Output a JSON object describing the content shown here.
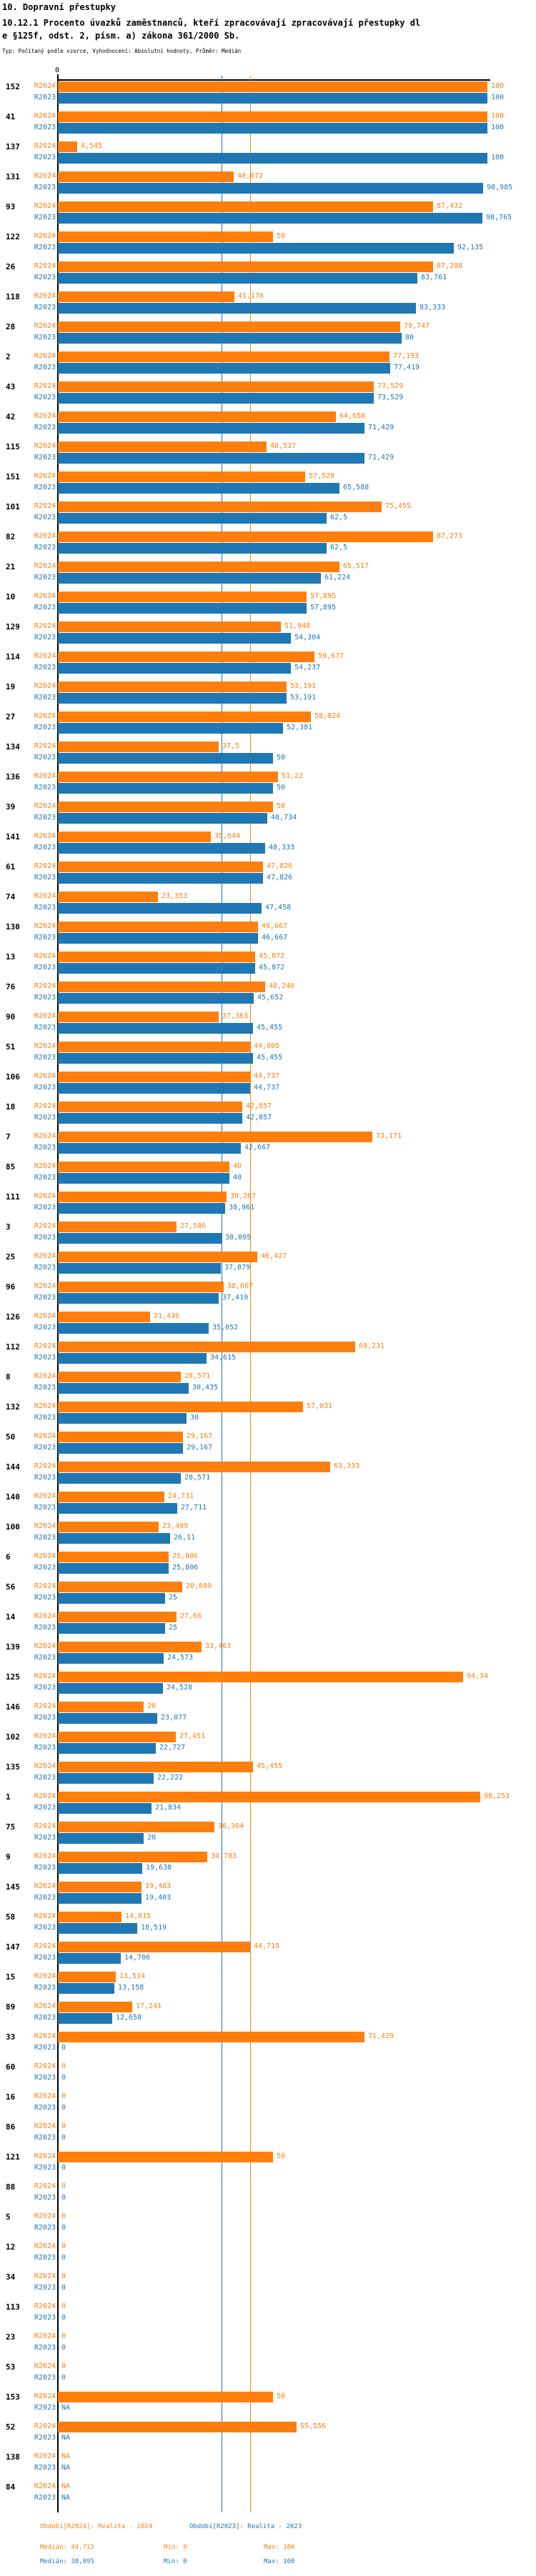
{
  "header": {
    "title": "10. Dopravní přestupky",
    "subtitle_line1": "10.12.1 Procento úvazků zaměstnanců, kteří zpracovávají zpracovávají přestupky dl",
    "subtitle_line2": "e §125f, odst. 2, písm. a) zákona 361/2000 Sb.",
    "meta": "Typ: Počítaný podle vzorce, Vyhodnocení: Absolutní hodnoty, Průměr: Medián"
  },
  "axis": {
    "zero_label": "0"
  },
  "colors": {
    "r2024": "#ff7f0e",
    "r2023": "#1f77b4",
    "axis": "#000000"
  },
  "series_labels": {
    "r2024": "R2024",
    "r2023": "R2023"
  },
  "chart_data": {
    "type": "bar",
    "orientation": "horizontal",
    "xlim": [
      0,
      100
    ],
    "grid": false,
    "series_names": [
      "R2024",
      "R2023"
    ],
    "median_lines": {
      "R2024": 44.715,
      "R2023": 38.095
    },
    "stats": {
      "R2024": {
        "median": 44.715,
        "min": 0,
        "max": 100
      },
      "R2023": {
        "median": 38.095,
        "min": 0,
        "max": 100
      }
    },
    "rows": [
      {
        "id": "152",
        "r2024": "100",
        "r2023": "100"
      },
      {
        "id": "41",
        "r2024": "100",
        "r2023": "100"
      },
      {
        "id": "137",
        "r2024": "4,545",
        "r2023": "100"
      },
      {
        "id": "131",
        "r2024": "40,872",
        "r2023": "98,985"
      },
      {
        "id": "93",
        "r2024": "87,432",
        "r2023": "98,765"
      },
      {
        "id": "122",
        "r2024": "50",
        "r2023": "92,135"
      },
      {
        "id": "26",
        "r2024": "87,288",
        "r2023": "83,761"
      },
      {
        "id": "118",
        "r2024": "41,176",
        "r2023": "83,333"
      },
      {
        "id": "28",
        "r2024": "79,747",
        "r2023": "80"
      },
      {
        "id": "2",
        "r2024": "77,193",
        "r2023": "77,419"
      },
      {
        "id": "43",
        "r2024": "73,529",
        "r2023": "73,529"
      },
      {
        "id": "42",
        "r2024": "64,658",
        "r2023": "71,429"
      },
      {
        "id": "115",
        "r2024": "48,537",
        "r2023": "71,429"
      },
      {
        "id": "151",
        "r2024": "57,528",
        "r2023": "65,588"
      },
      {
        "id": "101",
        "r2024": "75,455",
        "r2023": "62,5"
      },
      {
        "id": "82",
        "r2024": "87,273",
        "r2023": "62,5"
      },
      {
        "id": "21",
        "r2024": "65,517",
        "r2023": "61,224"
      },
      {
        "id": "10",
        "r2024": "57,895",
        "r2023": "57,895"
      },
      {
        "id": "129",
        "r2024": "51,948",
        "r2023": "54,304"
      },
      {
        "id": "114",
        "r2024": "59,677",
        "r2023": "54,237"
      },
      {
        "id": "19",
        "r2024": "53,191",
        "r2023": "53,191"
      },
      {
        "id": "27",
        "r2024": "58,824",
        "r2023": "52,381"
      },
      {
        "id": "134",
        "r2024": "37,5",
        "r2023": "50"
      },
      {
        "id": "136",
        "r2024": "51,22",
        "r2023": "50"
      },
      {
        "id": "39",
        "r2024": "50",
        "r2023": "48,734"
      },
      {
        "id": "141",
        "r2024": "35,644",
        "r2023": "48,333"
      },
      {
        "id": "61",
        "r2024": "47,826",
        "r2023": "47,826"
      },
      {
        "id": "74",
        "r2024": "23,353",
        "r2023": "47,458"
      },
      {
        "id": "130",
        "r2024": "46,667",
        "r2023": "46,667"
      },
      {
        "id": "13",
        "r2024": "45,872",
        "r2023": "45,872"
      },
      {
        "id": "76",
        "r2024": "48,246",
        "r2023": "45,652"
      },
      {
        "id": "90",
        "r2024": "37,363",
        "r2023": "45,455"
      },
      {
        "id": "51",
        "r2024": "44,805",
        "r2023": "45,455"
      },
      {
        "id": "106",
        "r2024": "44,737",
        "r2023": "44,737"
      },
      {
        "id": "18",
        "r2024": "42,857",
        "r2023": "42,857"
      },
      {
        "id": "7",
        "r2024": "73,171",
        "r2023": "42,667"
      },
      {
        "id": "85",
        "r2024": "40",
        "r2023": "40"
      },
      {
        "id": "111",
        "r2024": "39,267",
        "r2023": "38,961"
      },
      {
        "id": "3",
        "r2024": "27,586",
        "r2023": "38,095"
      },
      {
        "id": "25",
        "r2024": "46,427",
        "r2023": "37,879"
      },
      {
        "id": "96",
        "r2024": "38,667",
        "r2023": "37,419"
      },
      {
        "id": "126",
        "r2024": "21,436",
        "r2023": "35,052"
      },
      {
        "id": "112",
        "r2024": "69,231",
        "r2023": "34,615"
      },
      {
        "id": "8",
        "r2024": "28,571",
        "r2023": "30,435"
      },
      {
        "id": "132",
        "r2024": "57,031",
        "r2023": "30"
      },
      {
        "id": "50",
        "r2024": "29,167",
        "r2023": "29,167"
      },
      {
        "id": "144",
        "r2024": "63,333",
        "r2023": "28,571"
      },
      {
        "id": "140",
        "r2024": "24,731",
        "r2023": "27,711"
      },
      {
        "id": "100",
        "r2024": "23,499",
        "r2023": "26,11"
      },
      {
        "id": "6",
        "r2024": "25,806",
        "r2023": "25,806"
      },
      {
        "id": "56",
        "r2024": "28,889",
        "r2023": "25"
      },
      {
        "id": "14",
        "r2024": "27,66",
        "r2023": "25"
      },
      {
        "id": "139",
        "r2024": "33,463",
        "r2023": "24,573"
      },
      {
        "id": "125",
        "r2024": "94,34",
        "r2023": "24,528"
      },
      {
        "id": "146",
        "r2024": "20",
        "r2023": "23,077"
      },
      {
        "id": "102",
        "r2024": "27,451",
        "r2023": "22,727"
      },
      {
        "id": "135",
        "r2024": "45,455",
        "r2023": "22,222"
      },
      {
        "id": "1",
        "r2024": "98,253",
        "r2023": "21,834"
      },
      {
        "id": "75",
        "r2024": "36,364",
        "r2023": "20"
      },
      {
        "id": "9",
        "r2024": "34,783",
        "r2023": "19,638"
      },
      {
        "id": "145",
        "r2024": "19,403",
        "r2023": "19,403"
      },
      {
        "id": "58",
        "r2024": "14,815",
        "r2023": "18,519"
      },
      {
        "id": "147",
        "r2024": "44,715",
        "r2023": "14,706"
      },
      {
        "id": "15",
        "r2024": "13,514",
        "r2023": "13,158"
      },
      {
        "id": "89",
        "r2024": "17,241",
        "r2023": "12,658"
      },
      {
        "id": "33",
        "r2024": "71,429",
        "r2023": "0"
      },
      {
        "id": "60",
        "r2024": "0",
        "r2023": "0"
      },
      {
        "id": "16",
        "r2024": "0",
        "r2023": "0"
      },
      {
        "id": "86",
        "r2024": "0",
        "r2023": "0"
      },
      {
        "id": "121",
        "r2024": "50",
        "r2023": "0"
      },
      {
        "id": "88",
        "r2024": "0",
        "r2023": "0"
      },
      {
        "id": "5",
        "r2024": "0",
        "r2023": "0"
      },
      {
        "id": "12",
        "r2024": "0",
        "r2023": "0"
      },
      {
        "id": "34",
        "r2024": "0",
        "r2023": "0"
      },
      {
        "id": "113",
        "r2024": "0",
        "r2023": "0"
      },
      {
        "id": "23",
        "r2024": "0",
        "r2023": "0"
      },
      {
        "id": "53",
        "r2024": "0",
        "r2023": "0"
      },
      {
        "id": "153",
        "r2024": "50",
        "r2023": "NA"
      },
      {
        "id": "52",
        "r2024": "55,556",
        "r2023": "NA"
      },
      {
        "id": "138",
        "r2024": "NA",
        "r2023": "NA"
      },
      {
        "id": "84",
        "r2024": "NA",
        "r2023": "NA"
      }
    ]
  },
  "legend": {
    "r2024": {
      "label": "Období[R2024]: Realita - 2024",
      "median": "Medián: 44,715",
      "min": "Min: 0",
      "max": "Max: 100"
    },
    "r2023": {
      "label": "Období[R2023]: Realita - 2023",
      "median": "Medián: 38,095",
      "min": "Min: 0",
      "max": "Max: 100"
    }
  }
}
